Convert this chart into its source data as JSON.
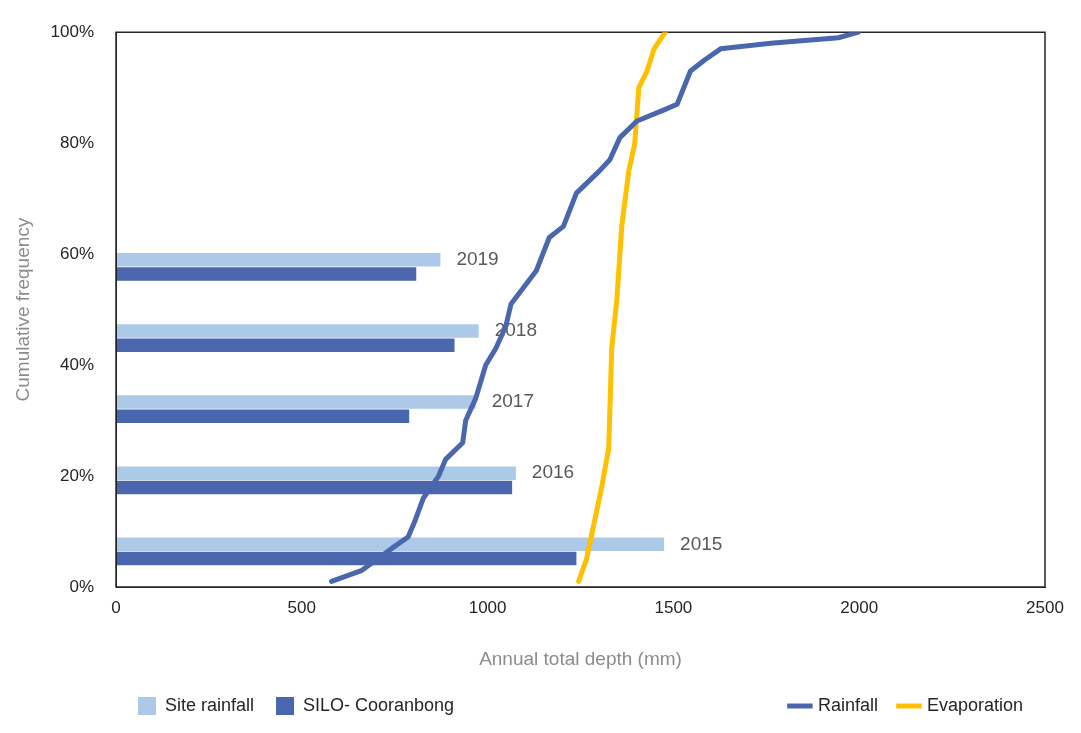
{
  "chart_data": [
    {
      "type": "bar",
      "orientation": "horizontal",
      "tick_labels": false,
      "xlim": [
        0,
        2500
      ],
      "xticks": [
        0,
        500,
        1000,
        1500,
        2000,
        2500
      ],
      "categories": [
        null,
        null,
        null,
        "2019",
        "2018",
        "2017",
        "2016",
        "2015"
      ],
      "legend": "bottom left",
      "series": [
        {
          "name": "Site rainfall",
          "color": "#adc9e8",
          "values": [
            null,
            null,
            null,
            873,
            976,
            968,
            1076,
            1475
          ]
        },
        {
          "name": "SILO- Cooranbong",
          "color": "#4a67ae",
          "values": [
            null,
            null,
            null,
            808,
            911,
            789,
            1066,
            1239
          ]
        }
      ]
    },
    {
      "type": "line",
      "xlabel": "Annual total depth (mm)",
      "ylabel": "Cumulative frequency",
      "xlim": [
        0,
        2500
      ],
      "xticks": [
        0,
        500,
        1000,
        1500,
        2000,
        2500
      ],
      "ylim": [
        0,
        100
      ],
      "yticks": [
        {
          "value": 0,
          "label": "0%"
        },
        {
          "value": 20,
          "label": "20%"
        },
        {
          "value": 40,
          "label": "40%"
        },
        {
          "value": 60,
          "label": "60%"
        },
        {
          "value": 80,
          "label": "80%"
        },
        {
          "value": 100,
          "label": "100%"
        }
      ],
      "legend": "bottom right",
      "series": [
        {
          "name": "Rainfall",
          "color": "#4a67ae",
          "x": [
            580,
            662,
            743,
            786,
            805,
            827,
            868,
            887,
            933,
            941,
            968,
            995,
            1022,
            1049,
            1063,
            1131,
            1166,
            1204,
            1239,
            1301,
            1329,
            1356,
            1402,
            1475,
            1510,
            1546,
            1584,
            1627,
            1762,
            1944,
            1998
          ],
          "values": [
            1,
            3,
            7,
            9,
            12,
            16,
            20,
            23,
            26,
            30,
            34,
            40,
            43,
            47,
            51,
            57,
            63,
            65,
            71,
            75,
            77,
            81,
            84,
            86,
            87,
            93,
            95,
            97,
            98,
            99,
            100
          ]
        },
        {
          "name": "Evaporation",
          "color": "#ffc000",
          "x": [
            1245,
            1266,
            1285,
            1307,
            1326,
            1334,
            1348,
            1361,
            1380,
            1396,
            1407,
            1429,
            1448,
            1478
          ],
          "values": [
            1,
            5,
            11,
            18,
            25,
            43,
            52,
            65,
            75,
            80,
            90,
            93,
            97,
            100
          ]
        }
      ]
    }
  ]
}
